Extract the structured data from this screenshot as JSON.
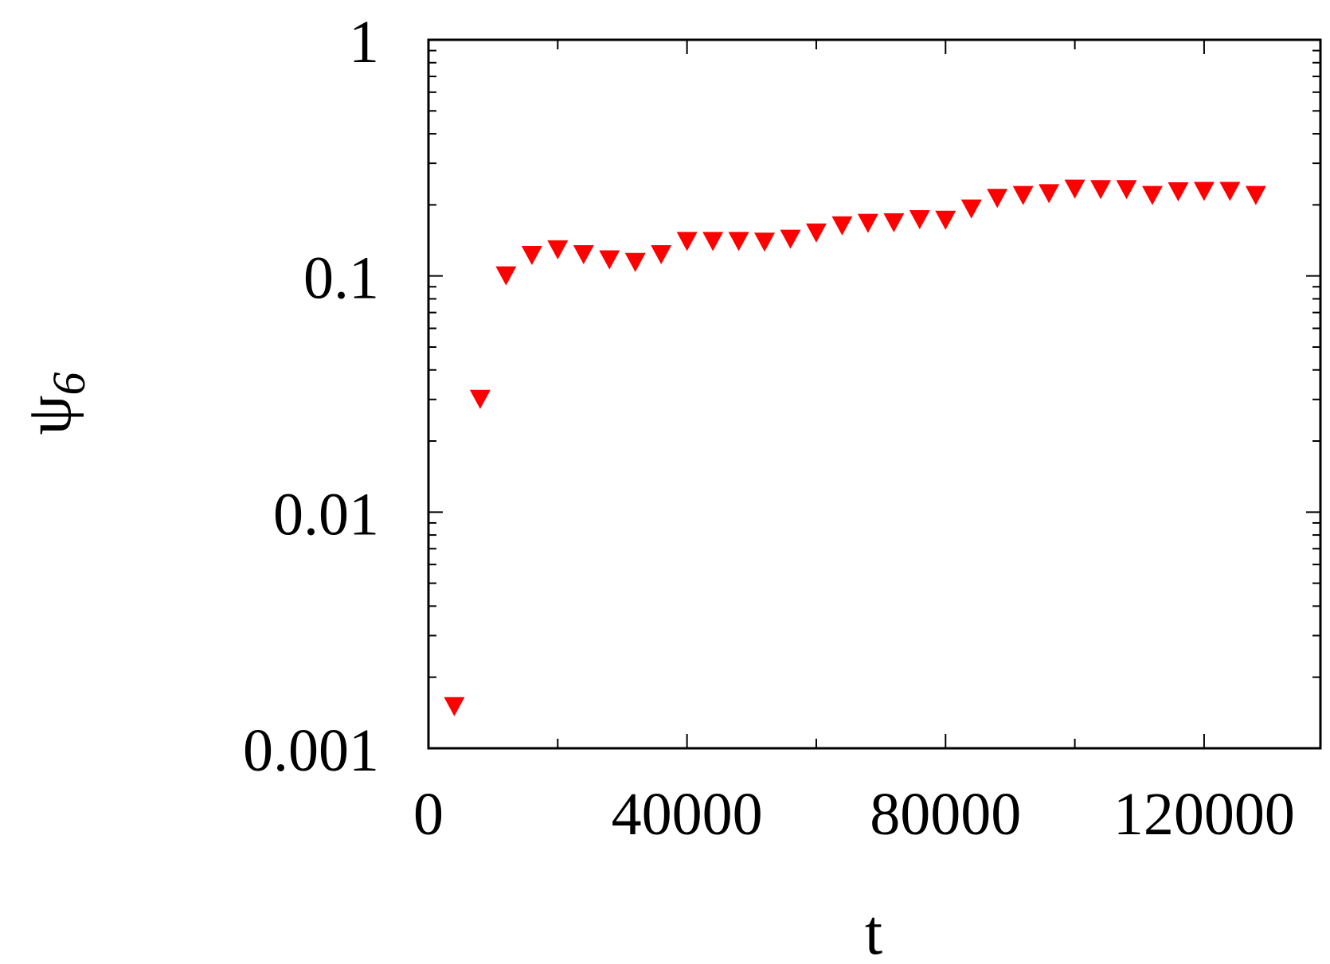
{
  "chart_data": {
    "type": "scatter",
    "title": "",
    "xlabel": "t",
    "ylabel": "ψ",
    "ylabel_subscript": "6",
    "x_scale": "linear",
    "y_scale": "log",
    "xlim": [
      0,
      138000
    ],
    "ylim": [
      0.001,
      1
    ],
    "x_ticks": [
      0,
      40000,
      80000,
      120000
    ],
    "x_tick_labels": [
      "0",
      "40000",
      "80000",
      "120000"
    ],
    "y_ticks": [
      0.001,
      0.01,
      0.1,
      1
    ],
    "y_tick_labels": [
      "0.001",
      "0.01",
      "0.1",
      "1"
    ],
    "grid": false,
    "legend": "none",
    "marker": "triangle-down",
    "color": "#ff0000",
    "series": [
      {
        "x": [
          4000,
          8000,
          12000,
          16000,
          20000,
          24000,
          28000,
          32000,
          36000,
          40000,
          44000,
          48000,
          52000,
          56000,
          60000,
          64000,
          68000,
          72000,
          76000,
          80000,
          84000,
          88000,
          92000,
          96000,
          100000,
          104000,
          108000,
          112000,
          116000,
          120000,
          124000,
          128000
        ],
        "y": [
          0.0015,
          0.03,
          0.1,
          0.122,
          0.129,
          0.123,
          0.117,
          0.114,
          0.123,
          0.14,
          0.14,
          0.14,
          0.139,
          0.143,
          0.152,
          0.163,
          0.167,
          0.168,
          0.173,
          0.172,
          0.192,
          0.213,
          0.219,
          0.223,
          0.233,
          0.232,
          0.232,
          0.219,
          0.227,
          0.228,
          0.228,
          0.219
        ]
      }
    ]
  }
}
